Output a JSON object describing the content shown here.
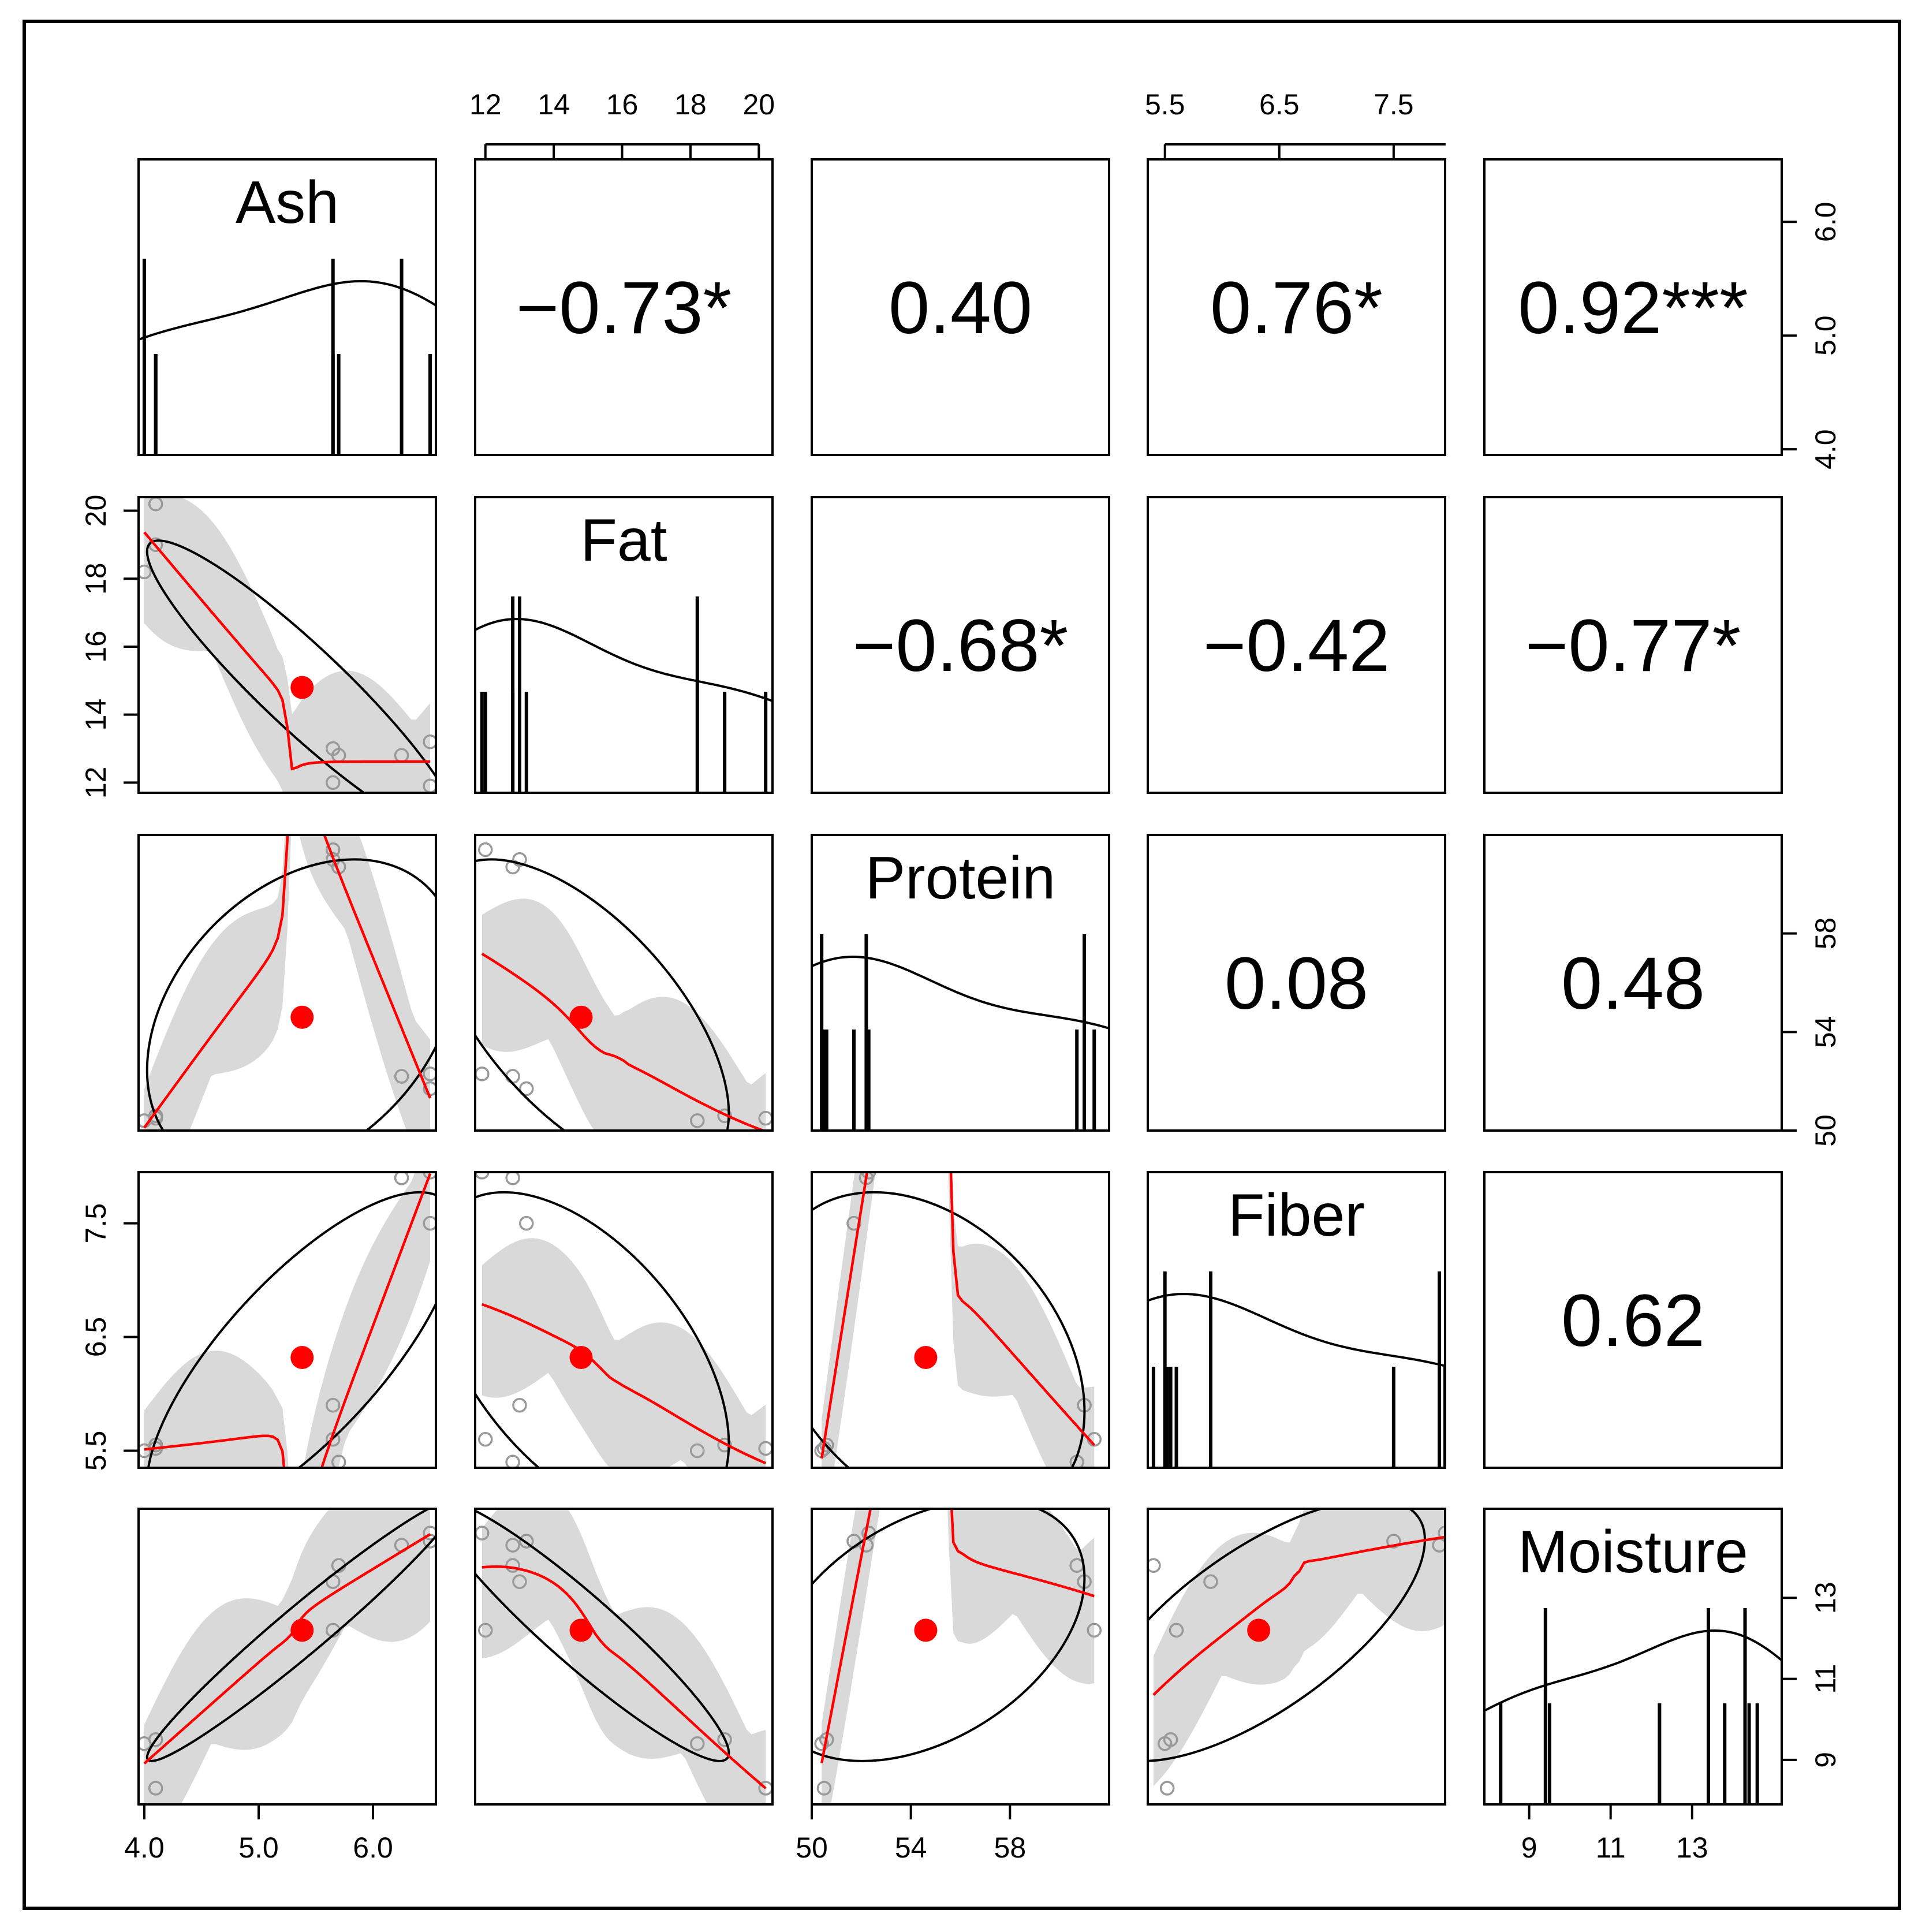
{
  "chart_data": {
    "type": "scatter",
    "variables": [
      "Ash",
      "Fat",
      "Protein",
      "Fiber",
      "Moisture"
    ],
    "diagonal_labels": [
      "Ash",
      "Fat",
      "Protein",
      "Fiber",
      "Moisture"
    ],
    "ranges": {
      "Ash": [
        3.95,
        6.55
      ],
      "Fat": [
        11.7,
        20.4
      ],
      "Protein": [
        50,
        62
      ],
      "Fiber": [
        5.35,
        7.95
      ],
      "Moisture": [
        7.9,
        15.2
      ]
    },
    "axis_ticks": {
      "Ash": [
        4.0,
        5.0,
        6.0
      ],
      "Fat": [
        12,
        14,
        16,
        18,
        20
      ],
      "Protein": [
        50,
        54,
        58
      ],
      "Fiber": [
        5.5,
        6.5,
        7.5
      ],
      "Moisture": [
        9,
        11,
        13
      ]
    },
    "axis_tick_labels": {
      "Ash": [
        "4.0",
        "5.0",
        "6.0"
      ],
      "Fat": [
        "12",
        "14",
        "16",
        "18",
        "20"
      ],
      "Protein": [
        "50",
        "54",
        "58"
      ],
      "Fiber": [
        "5.5",
        "6.5",
        "7.5"
      ],
      "Moisture": [
        "9",
        "11",
        "13"
      ]
    },
    "correlations": [
      {
        "row": 0,
        "col": 1,
        "label": "−0.73*"
      },
      {
        "row": 0,
        "col": 2,
        "label": "0.40"
      },
      {
        "row": 0,
        "col": 3,
        "label": "0.76*"
      },
      {
        "row": 0,
        "col": 4,
        "label": "0.92***"
      },
      {
        "row": 1,
        "col": 2,
        "label": "−0.68*"
      },
      {
        "row": 1,
        "col": 3,
        "label": "−0.42"
      },
      {
        "row": 1,
        "col": 4,
        "label": "−0.77*"
      },
      {
        "row": 2,
        "col": 3,
        "label": "0.08"
      },
      {
        "row": 2,
        "col": 4,
        "label": "0.48"
      },
      {
        "row": 3,
        "col": 4,
        "label": "0.62"
      }
    ],
    "observations": [
      {
        "Ash": 4.0,
        "Fat": 18.2,
        "Protein": 50.4,
        "Fiber": 5.5,
        "Moisture": 9.4
      },
      {
        "Ash": 4.1,
        "Fat": 20.2,
        "Protein": 50.5,
        "Fiber": 5.52,
        "Moisture": 8.3
      },
      {
        "Ash": 4.1,
        "Fat": 19.0,
        "Protein": 50.6,
        "Fiber": 5.55,
        "Moisture": 9.5
      },
      {
        "Ash": 5.65,
        "Fat": 13.0,
        "Protein": 61.0,
        "Fiber": 5.9,
        "Moisture": 13.4
      },
      {
        "Ash": 5.65,
        "Fat": 12.0,
        "Protein": 61.4,
        "Fiber": 5.6,
        "Moisture": 12.2
      },
      {
        "Ash": 5.7,
        "Fat": 12.8,
        "Protein": 60.7,
        "Fiber": 5.4,
        "Moisture": 13.8
      },
      {
        "Ash": 6.25,
        "Fat": 12.8,
        "Protein": 52.2,
        "Fiber": 7.9,
        "Moisture": 14.3
      },
      {
        "Ash": 6.5,
        "Fat": 13.2,
        "Protein": 51.7,
        "Fiber": 7.5,
        "Moisture": 14.4
      },
      {
        "Ash": 6.5,
        "Fat": 11.9,
        "Protein": 52.3,
        "Fiber": 7.95,
        "Moisture": 14.6
      }
    ],
    "means": {
      "Ash": 5.38,
      "Fat": 14.8,
      "Protein": 54.6,
      "Fiber": 6.32,
      "Moisture": 12.2
    },
    "mean_point_color": "#ff0000",
    "smoother_color": "#ff0000",
    "band_color": "#d9d9d9",
    "density_color": "#000000"
  }
}
